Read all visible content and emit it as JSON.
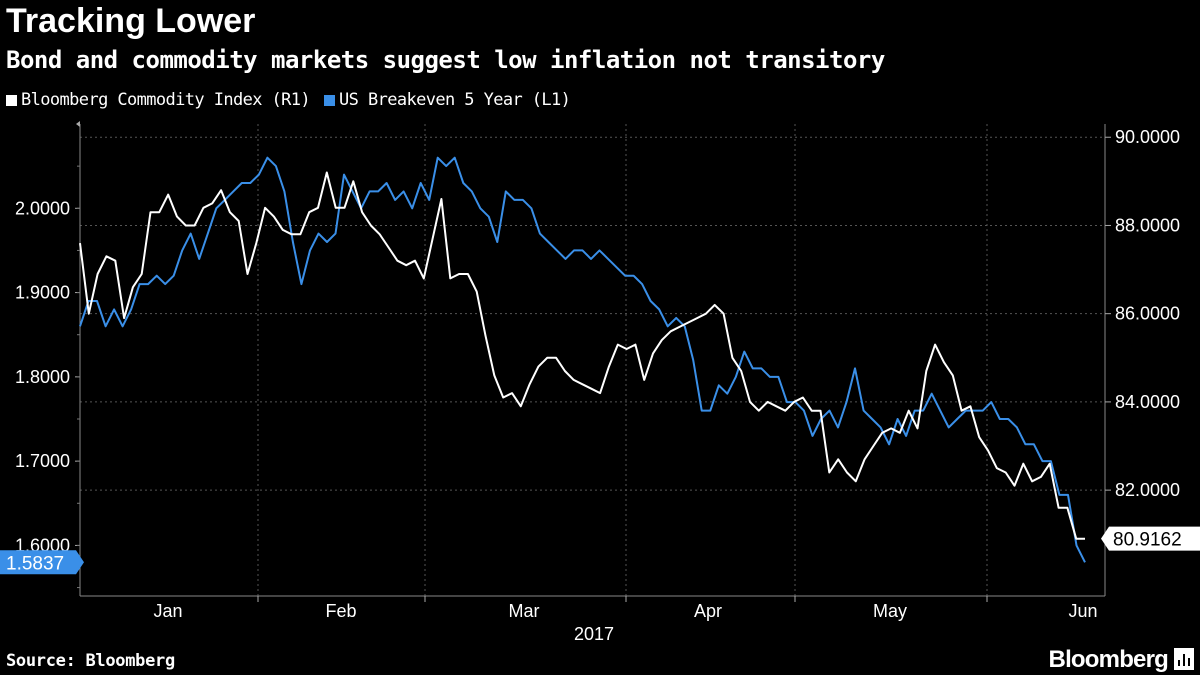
{
  "title": "Tracking Lower",
  "subtitle": "Bond and commodity markets suggest low inflation not transitory",
  "legend": [
    {
      "label": "Bloomberg Commodity Index (R1)",
      "color": "#ffffff"
    },
    {
      "label": "US Breakeven 5 Year (L1)",
      "color": "#3a8fe8"
    }
  ],
  "source": "Source: Bloomberg",
  "brand": "Bloomberg",
  "brand_icon": "bloomberg-terminal-icon",
  "chart_data": {
    "type": "line",
    "x_label_year": "2017",
    "x_ticks": [
      "Jan",
      "Feb",
      "Mar",
      "Apr",
      "May",
      "Jun"
    ],
    "left_axis": {
      "ticks": [
        "1.6000",
        "1.7000",
        "1.8000",
        "1.9000",
        "2.0000"
      ],
      "ylim": [
        1.54,
        2.1
      ],
      "last_value_label": "1.5837"
    },
    "right_axis": {
      "ticks": [
        "82.0000",
        "84.0000",
        "86.0000",
        "88.0000",
        "90.0000"
      ],
      "ylim": [
        79.6,
        90.3
      ],
      "last_value_label": "80.9162"
    },
    "series": [
      {
        "name": "US Breakeven 5 Year",
        "axis": "left",
        "color": "#3a8fe8",
        "values": [
          1.86,
          1.89,
          1.89,
          1.86,
          1.88,
          1.86,
          1.88,
          1.91,
          1.91,
          1.92,
          1.91,
          1.92,
          1.95,
          1.97,
          1.94,
          1.97,
          2.0,
          2.01,
          2.02,
          2.03,
          2.03,
          2.04,
          2.06,
          2.05,
          2.02,
          1.96,
          1.91,
          1.95,
          1.97,
          1.96,
          1.97,
          2.04,
          2.02,
          2.0,
          2.02,
          2.02,
          2.03,
          2.01,
          2.02,
          2.0,
          2.03,
          2.01,
          2.06,
          2.05,
          2.06,
          2.03,
          2.02,
          2.0,
          1.99,
          1.96,
          2.02,
          2.01,
          2.01,
          2.0,
          1.97,
          1.96,
          1.95,
          1.94,
          1.95,
          1.95,
          1.94,
          1.95,
          1.94,
          1.93,
          1.92,
          1.92,
          1.91,
          1.89,
          1.88,
          1.86,
          1.87,
          1.86,
          1.82,
          1.76,
          1.76,
          1.79,
          1.78,
          1.8,
          1.83,
          1.81,
          1.81,
          1.8,
          1.8,
          1.77,
          1.77,
          1.76,
          1.73,
          1.75,
          1.76,
          1.74,
          1.77,
          1.81,
          1.76,
          1.75,
          1.74,
          1.72,
          1.75,
          1.73,
          1.76,
          1.76,
          1.78,
          1.76,
          1.74,
          1.75,
          1.76,
          1.76,
          1.76,
          1.77,
          1.75,
          1.75,
          1.74,
          1.72,
          1.72,
          1.7,
          1.7,
          1.66,
          1.66,
          1.6,
          1.58
        ]
      },
      {
        "name": "Bloomberg Commodity Index",
        "axis": "right",
        "color": "#ffffff",
        "values": [
          87.6,
          86.0,
          86.9,
          87.3,
          87.2,
          85.9,
          86.6,
          86.9,
          88.3,
          88.3,
          88.7,
          88.2,
          88.0,
          88.0,
          88.4,
          88.5,
          88.8,
          88.3,
          88.1,
          86.9,
          87.6,
          88.4,
          88.2,
          87.9,
          87.8,
          87.8,
          88.3,
          88.4,
          89.2,
          88.4,
          88.4,
          89.0,
          88.3,
          88.0,
          87.8,
          87.5,
          87.2,
          87.1,
          87.2,
          86.8,
          87.7,
          88.6,
          86.8,
          86.9,
          86.9,
          86.5,
          85.5,
          84.6,
          84.1,
          84.2,
          83.9,
          84.4,
          84.8,
          85.0,
          85.0,
          84.7,
          84.5,
          84.4,
          84.3,
          84.2,
          84.8,
          85.3,
          85.2,
          85.3,
          84.5,
          85.1,
          85.4,
          85.6,
          85.7,
          85.8,
          85.9,
          86.0,
          86.2,
          86.0,
          85.0,
          84.7,
          84.0,
          83.8,
          84.0,
          83.9,
          83.8,
          84.0,
          84.1,
          83.8,
          83.8,
          82.4,
          82.7,
          82.4,
          82.2,
          82.7,
          83.0,
          83.3,
          83.4,
          83.3,
          83.8,
          83.4,
          84.7,
          85.3,
          84.9,
          84.6,
          83.8,
          83.9,
          83.2,
          82.9,
          82.5,
          82.4,
          82.1,
          82.6,
          82.2,
          82.3,
          82.6,
          81.6,
          81.6,
          80.9,
          80.9
        ]
      }
    ]
  }
}
